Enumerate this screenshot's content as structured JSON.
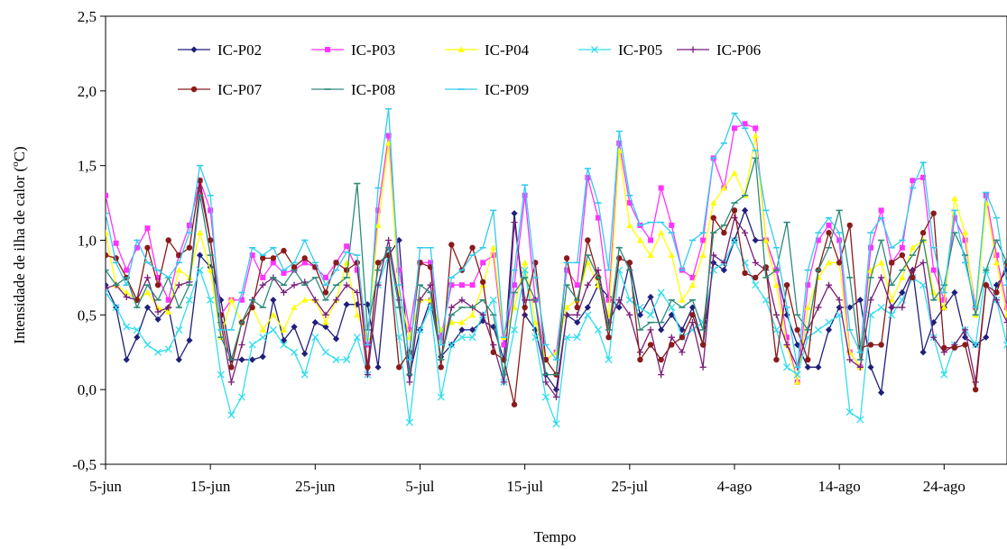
{
  "chart_data": {
    "type": "line",
    "title": "",
    "xlabel": "Tempo",
    "ylabel": "Intensidade de ilha de calor (°C)",
    "ylabel_parts": {
      "before": "Intensidade de ilha de calor (",
      "sup": "o",
      "after": "C)"
    },
    "ylim": [
      -0.5,
      2.5
    ],
    "yticks": [
      -0.5,
      0.0,
      0.5,
      1.0,
      1.5,
      2.0,
      2.5
    ],
    "ytick_labels": [
      "-0,5",
      "0,0",
      "0,5",
      "1,0",
      "1,5",
      "2,0",
      "2,5"
    ],
    "x_start": "5-jun",
    "xticks": [
      0,
      10,
      20,
      30,
      40,
      50,
      60,
      70,
      80
    ],
    "xtick_labels": [
      "5-jun",
      "15-jun",
      "25-jun",
      "5-jul",
      "15-jul",
      "25-jul",
      "4-ago",
      "14-ago",
      "24-ago"
    ],
    "xlim": [
      0,
      86
    ],
    "legend_position": "top-left",
    "series": [
      {
        "name": "IC-P02",
        "color": "#1f1f7a",
        "marker": "diamond",
        "values": [
          0.7,
          0.55,
          0.2,
          0.35,
          0.55,
          0.47,
          0.55,
          0.2,
          0.33,
          0.9,
          0.82,
          0.6,
          0.2,
          0.2,
          0.2,
          0.22,
          0.6,
          0.33,
          0.42,
          0.24,
          0.45,
          0.42,
          0.34,
          0.57,
          0.57,
          0.57,
          0.15,
          0.9,
          1.0,
          0.1,
          0.4,
          0.6,
          0.22,
          0.3,
          0.4,
          0.4,
          0.46,
          0.42,
          0.2,
          1.18,
          0.5,
          0.4,
          0.1,
          0.0,
          0.5,
          0.45,
          0.55,
          0.7,
          0.62,
          0.55,
          0.85,
          0.5,
          0.62,
          0.4,
          0.5,
          0.4,
          0.55,
          0.3,
          0.85,
          0.8,
          1.0,
          1.2,
          1.0,
          1.0,
          0.8,
          0.5,
          0.3,
          0.15,
          0.15,
          0.4,
          0.55,
          0.55,
          0.6,
          0.15,
          -0.02,
          0.55,
          0.65,
          0.8,
          0.25,
          0.45,
          0.55,
          0.65,
          0.35,
          0.3,
          0.35,
          0.7,
          0.8
        ]
      },
      {
        "name": "IC-P03",
        "color": "#ff33ff",
        "marker": "square",
        "values": [
          1.3,
          0.98,
          0.8,
          0.95,
          1.08,
          0.75,
          0.6,
          0.9,
          1.1,
          1.4,
          1.2,
          0.5,
          0.6,
          0.6,
          0.9,
          0.75,
          0.85,
          0.78,
          0.8,
          0.85,
          0.82,
          0.75,
          0.85,
          0.96,
          0.8,
          0.3,
          1.2,
          1.7,
          0.8,
          0.4,
          0.85,
          0.85,
          0.35,
          0.7,
          0.7,
          0.7,
          0.85,
          0.9,
          0.3,
          0.7,
          1.3,
          0.6,
          0.2,
          0.25,
          0.8,
          0.7,
          1.42,
          1.15,
          0.6,
          1.65,
          1.25,
          1.1,
          1.0,
          1.35,
          1.1,
          0.8,
          0.75,
          1.0,
          1.55,
          1.35,
          1.75,
          1.78,
          1.75,
          1.0,
          0.8,
          0.35,
          0.05,
          0.7,
          1.0,
          1.1,
          1.0,
          0.25,
          0.15,
          0.95,
          1.2,
          0.85,
          0.95,
          1.4,
          1.42,
          0.8,
          0.6,
          1.15,
          1.0,
          0.55,
          1.3,
          0.9,
          0.55
        ]
      },
      {
        "name": "IC-P04",
        "color": "#ffff00",
        "marker": "triangle",
        "values": [
          1.05,
          0.7,
          0.65,
          0.6,
          0.65,
          0.55,
          0.52,
          0.8,
          0.75,
          1.05,
          0.8,
          0.35,
          0.6,
          0.45,
          0.55,
          0.4,
          0.5,
          0.4,
          0.55,
          0.6,
          0.6,
          0.45,
          0.6,
          0.85,
          0.5,
          0.35,
          1.1,
          1.65,
          0.65,
          0.35,
          0.6,
          0.6,
          0.4,
          0.45,
          0.45,
          0.5,
          0.7,
          0.95,
          0.35,
          0.55,
          0.85,
          0.45,
          0.2,
          0.25,
          0.55,
          0.6,
          0.85,
          0.7,
          0.5,
          1.6,
          1.1,
          1.0,
          0.9,
          1.05,
          0.9,
          0.6,
          0.7,
          0.9,
          1.25,
          1.35,
          1.45,
          1.3,
          1.7,
          1.0,
          0.7,
          0.3,
          0.05,
          0.55,
          0.75,
          0.85,
          0.85,
          0.25,
          0.15,
          0.8,
          0.85,
          0.6,
          0.75,
          0.95,
          1.0,
          0.65,
          0.55,
          1.28,
          1.05,
          0.5,
          1.25,
          0.85,
          0.5
        ]
      },
      {
        "name": "IC-P05",
        "color": "#33ddee",
        "marker": "cross",
        "values": [
          0.65,
          0.55,
          0.42,
          0.4,
          0.3,
          0.25,
          0.27,
          0.4,
          0.6,
          0.8,
          0.6,
          0.1,
          -0.17,
          -0.05,
          0.3,
          0.35,
          0.4,
          0.3,
          0.25,
          0.1,
          0.35,
          0.25,
          0.2,
          0.2,
          0.35,
          0.1,
          0.7,
          0.9,
          0.35,
          -0.22,
          0.4,
          0.55,
          -0.05,
          0.3,
          0.35,
          0.35,
          0.5,
          0.6,
          0.05,
          0.4,
          0.8,
          0.35,
          -0.05,
          -0.23,
          0.35,
          0.35,
          0.5,
          0.4,
          0.2,
          0.8,
          0.6,
          0.55,
          0.5,
          0.65,
          0.55,
          0.35,
          0.4,
          0.45,
          0.8,
          0.85,
          1.0,
          0.85,
          0.7,
          0.6,
          0.4,
          0.15,
          0.1,
          0.35,
          0.4,
          0.45,
          0.5,
          -0.15,
          -0.2,
          0.5,
          0.55,
          0.5,
          0.6,
          0.75,
          0.7,
          0.35,
          0.1,
          0.3,
          0.4,
          0.3,
          0.8,
          0.6,
          0.3
        ]
      },
      {
        "name": "IC-P06",
        "color": "#7a1f7a",
        "marker": "plus",
        "values": [
          0.68,
          0.7,
          0.62,
          0.6,
          0.75,
          0.52,
          0.55,
          0.7,
          0.72,
          1.35,
          1.0,
          0.45,
          0.05,
          0.3,
          0.6,
          0.7,
          0.75,
          0.65,
          0.7,
          0.72,
          0.6,
          0.5,
          0.6,
          0.7,
          0.65,
          0.1,
          0.7,
          1.0,
          0.6,
          0.05,
          0.6,
          0.7,
          0.2,
          0.55,
          0.6,
          0.55,
          0.5,
          0.3,
          0.05,
          1.12,
          0.6,
          0.6,
          0.05,
          -0.05,
          0.5,
          0.5,
          0.7,
          0.8,
          0.45,
          0.6,
          0.5,
          0.25,
          0.4,
          0.1,
          0.35,
          0.25,
          0.45,
          0.15,
          0.9,
          0.85,
          1.15,
          1.05,
          0.85,
          0.8,
          0.5,
          0.3,
          0.15,
          0.4,
          0.55,
          0.7,
          0.6,
          0.2,
          0.15,
          0.6,
          0.75,
          0.55,
          0.55,
          0.8,
          0.85,
          0.35,
          0.25,
          0.3,
          0.4,
          0.05,
          0.7,
          0.6,
          0.45
        ]
      },
      {
        "name": "IC-P07",
        "color": "#8b1a1a",
        "marker": "circle",
        "values": [
          0.9,
          0.88,
          0.75,
          0.6,
          0.95,
          0.7,
          1.0,
          0.9,
          0.95,
          1.4,
          1.0,
          0.5,
          0.15,
          0.45,
          0.55,
          0.88,
          0.88,
          0.93,
          0.82,
          0.88,
          0.82,
          0.65,
          0.85,
          0.8,
          0.85,
          0.15,
          0.85,
          0.9,
          0.15,
          0.25,
          0.85,
          0.82,
          0.15,
          0.97,
          0.8,
          0.95,
          0.72,
          0.25,
          0.2,
          -0.1,
          0.55,
          0.85,
          0.2,
          0.1,
          0.88,
          0.55,
          1.0,
          0.75,
          0.35,
          0.88,
          0.85,
          0.2,
          0.3,
          0.2,
          0.3,
          0.35,
          0.5,
          0.3,
          1.15,
          1.05,
          1.2,
          0.78,
          0.75,
          0.82,
          0.2,
          0.7,
          0.4,
          0.2,
          0.8,
          1.05,
          0.85,
          1.1,
          0.28,
          0.3,
          0.3,
          0.85,
          0.9,
          0.75,
          1.05,
          1.18,
          0.28,
          0.28,
          0.3,
          0.0,
          0.7,
          0.65,
          0.85
        ]
      },
      {
        "name": "IC-P08",
        "color": "#2e8b7a",
        "marker": "dash",
        "values": [
          0.8,
          0.7,
          0.75,
          0.55,
          0.7,
          0.6,
          0.75,
          0.55,
          0.7,
          1.3,
          0.9,
          0.35,
          0.2,
          0.45,
          0.6,
          0.55,
          0.75,
          0.7,
          0.8,
          0.7,
          0.75,
          0.6,
          0.7,
          0.75,
          1.38,
          0.4,
          0.8,
          0.95,
          0.55,
          0.1,
          0.7,
          0.65,
          0.2,
          0.5,
          0.55,
          0.55,
          0.6,
          0.5,
          0.1,
          0.65,
          0.75,
          0.6,
          0.1,
          0.1,
          0.7,
          0.6,
          0.9,
          0.75,
          0.4,
          0.95,
          0.8,
          0.4,
          0.45,
          0.45,
          0.6,
          0.55,
          0.6,
          0.4,
          1.05,
          1.1,
          1.25,
          1.3,
          1.55,
          0.75,
          0.8,
          1.12,
          0.5,
          0.4,
          0.8,
          0.95,
          1.2,
          0.75,
          0.2,
          0.75,
          1.0,
          0.7,
          0.8,
          0.9,
          1.0,
          0.6,
          0.7,
          1.05,
          0.9,
          0.5,
          0.8,
          1.0,
          0.85
        ]
      },
      {
        "name": "IC-P09",
        "color": "#33ccee",
        "marker": "dash",
        "values": [
          1.18,
          0.85,
          0.7,
          1.0,
          0.85,
          0.8,
          0.75,
          0.85,
          1.05,
          1.5,
          1.3,
          0.4,
          0.4,
          0.65,
          0.95,
          0.9,
          0.95,
          0.8,
          0.85,
          1.0,
          0.85,
          0.7,
          0.8,
          0.92,
          0.9,
          0.3,
          1.35,
          1.88,
          0.7,
          0.2,
          0.95,
          0.95,
          0.3,
          0.75,
          0.8,
          0.9,
          0.95,
          1.2,
          0.35,
          0.8,
          1.37,
          0.75,
          0.3,
          0.2,
          0.85,
          0.85,
          1.48,
          1.25,
          0.8,
          1.73,
          1.3,
          1.1,
          1.12,
          1.12,
          1.05,
          0.8,
          1.0,
          1.05,
          1.55,
          1.65,
          1.85,
          1.75,
          1.6,
          1.2,
          0.95,
          0.55,
          0.15,
          0.8,
          1.05,
          1.15,
          1.05,
          0.4,
          0.25,
          1.05,
          1.15,
          0.95,
          1.0,
          1.35,
          1.52,
          0.95,
          0.65,
          1.2,
          0.85,
          0.55,
          1.32,
          1.15,
          0.7
        ]
      }
    ]
  }
}
